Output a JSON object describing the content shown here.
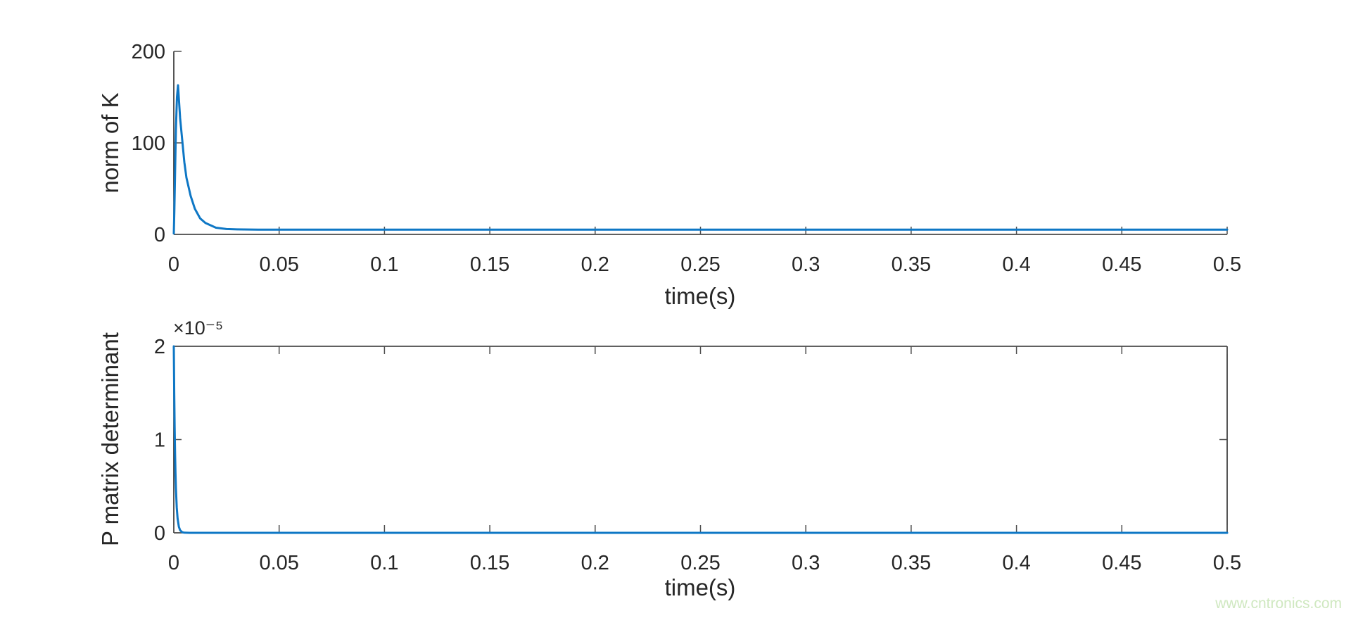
{
  "figure": {
    "background": "#ffffff",
    "text_color": "#262626",
    "watermark": {
      "text": "www.cntronics.com",
      "color": "#cfe8c0"
    }
  },
  "chart_data": [
    {
      "type": "line",
      "subplot": "top",
      "title": "",
      "xlabel": "time(s)",
      "ylabel": "norm of K",
      "xlim": [
        0,
        0.5
      ],
      "ylim": [
        0,
        200
      ],
      "xticks": [
        0,
        0.05,
        0.1,
        0.15,
        0.2,
        0.25,
        0.3,
        0.35,
        0.4,
        0.45,
        0.5
      ],
      "xtick_labels": [
        "0",
        "0.05",
        "0.1",
        "0.15",
        "0.2",
        "0.25",
        "0.3",
        "0.35",
        "0.4",
        "0.45",
        "0.5"
      ],
      "yticks": [
        0,
        100,
        200
      ],
      "ytick_labels": [
        "0",
        "100",
        "200"
      ],
      "box": "off",
      "grid": false,
      "legend": null,
      "line_color": "#0E77C5",
      "series": [
        {
          "name": "norm of K",
          "x": [
            0,
            0.00025,
            0.0005,
            0.001,
            0.0015,
            0.002,
            0.003,
            0.004,
            0.005,
            0.006,
            0.008,
            0.01,
            0.0125,
            0.015,
            0.02,
            0.025,
            0.03,
            0.04,
            0.06,
            0.1,
            0.15,
            0.2,
            0.25,
            0.3,
            0.35,
            0.4,
            0.45,
            0.5
          ],
          "y": [
            1,
            25,
            55,
            115,
            150,
            163,
            127,
            103,
            79,
            62,
            42,
            28,
            17.5,
            12.5,
            7.3,
            5.9,
            5.5,
            5.2,
            5.2,
            5.2,
            5.2,
            5.2,
            5.2,
            5.2,
            5.2,
            5.2,
            5.2,
            5.2
          ]
        }
      ]
    },
    {
      "type": "line",
      "subplot": "bottom",
      "title": "",
      "xlabel": "time(s)",
      "ylabel": "P matrix determinant",
      "offset_text": "×10⁻⁵",
      "xlim": [
        0,
        0.5
      ],
      "ylim": [
        0,
        2e-05
      ],
      "xticks": [
        0,
        0.05,
        0.1,
        0.15,
        0.2,
        0.25,
        0.3,
        0.35,
        0.4,
        0.45,
        0.5
      ],
      "xtick_labels": [
        "0",
        "0.05",
        "0.1",
        "0.15",
        "0.2",
        "0.25",
        "0.3",
        "0.35",
        "0.4",
        "0.45",
        "0.5"
      ],
      "yticks": [
        0,
        1e-05,
        2e-05
      ],
      "ytick_labels": [
        "0",
        "1",
        "2"
      ],
      "box": "on",
      "grid": false,
      "legend": null,
      "line_color": "#0E77C5",
      "series": [
        {
          "name": "P matrix determinant",
          "x": [
            0,
            0.0002,
            0.0004,
            0.0006,
            0.0008,
            0.001,
            0.0014,
            0.0018,
            0.0024,
            0.003,
            0.004,
            0.005,
            0.0075,
            0.01,
            0.05,
            0.1,
            0.15,
            0.2,
            0.25,
            0.3,
            0.35,
            0.4,
            0.45,
            0.5
          ],
          "y": [
            2e-05,
            1.5e-05,
            1.13e-05,
            8.5e-06,
            6.4e-06,
            4.8e-06,
            2.7e-06,
            1.54e-06,
            6.5e-07,
            2.7e-07,
            6.6e-08,
            1.6e-08,
            0,
            0,
            0,
            0,
            0,
            0,
            0,
            0,
            0,
            0,
            0,
            0
          ]
        }
      ]
    }
  ]
}
